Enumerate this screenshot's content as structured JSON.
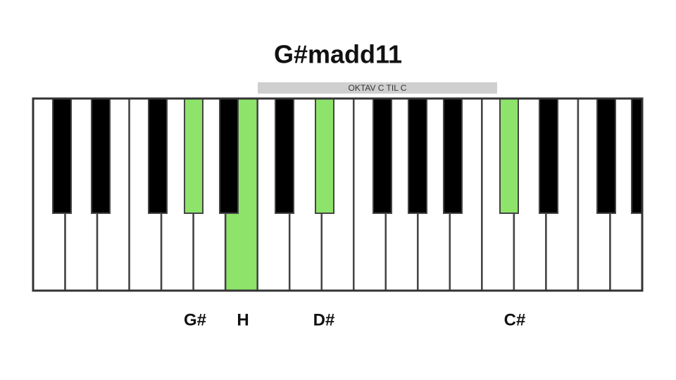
{
  "title": "G#madd11",
  "octave_label": "OKTAV C TIL C",
  "note_labels": [
    "G#",
    "H",
    "D#",
    "C#"
  ]
}
